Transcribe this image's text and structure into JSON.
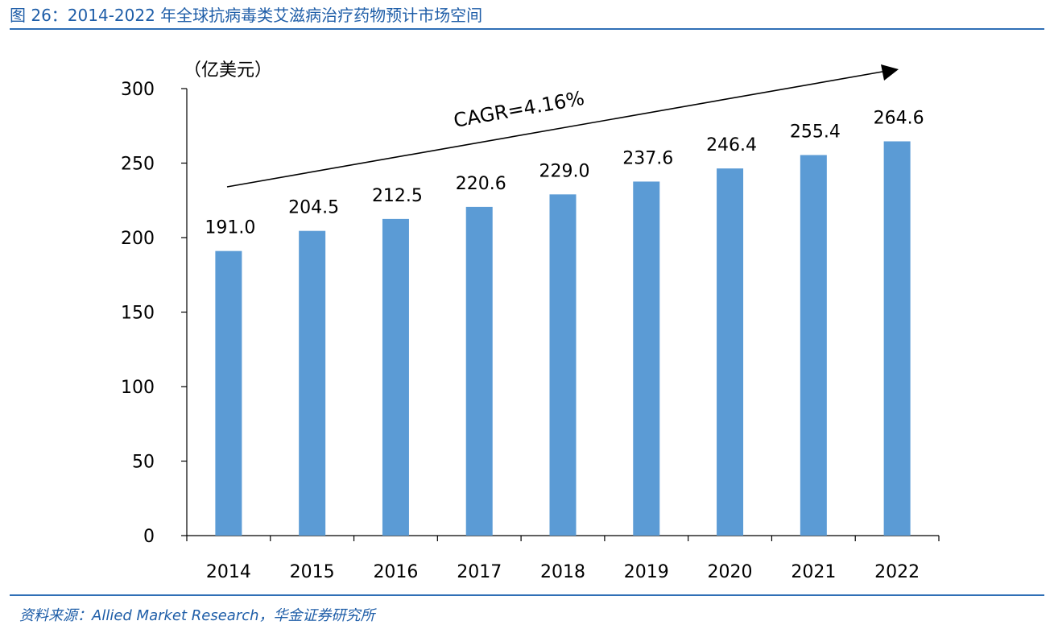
{
  "figure": {
    "title": "图 26：2014-2022 年全球抗病毒类艾滋病治疗药物预计市场空间",
    "source": "资料来源：Allied Market Research，华金证券研究所"
  },
  "chart_data": {
    "type": "bar",
    "categories": [
      "2014",
      "2015",
      "2016",
      "2017",
      "2018",
      "2019",
      "2020",
      "2021",
      "2022"
    ],
    "values": [
      191.0,
      204.5,
      212.5,
      220.6,
      229.0,
      237.6,
      246.4,
      255.4,
      264.6
    ],
    "value_labels": [
      "191.0",
      "204.5",
      "212.5",
      "220.6",
      "229.0",
      "237.6",
      "246.4",
      "255.4",
      "264.6"
    ],
    "yticks": [
      "0",
      "50",
      "100",
      "150",
      "200",
      "250",
      "300"
    ],
    "ylim": [
      0,
      300
    ],
    "unit_label": "（亿美元）",
    "annotation": "CAGR=4.16%",
    "bar_color": "#5b9bd5",
    "grid": false,
    "legend": "none"
  }
}
